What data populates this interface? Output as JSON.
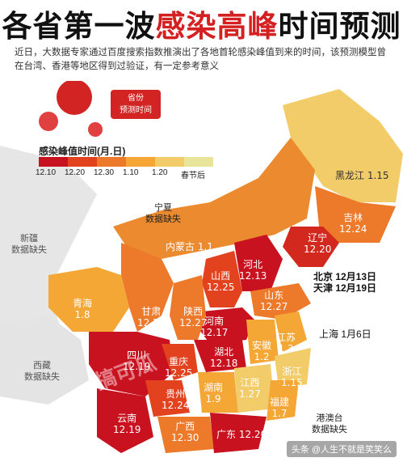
{
  "title": {
    "part1": "各省第一波",
    "part2": "感染高峰",
    "part3": "时间预测"
  },
  "intro": "近日，大数据专家通过百度搜索指数推演出了各地首轮感染峰值到来的时间，该预测模型曾在台湾、香港等地区得到过验证，有一定参考意义",
  "badge": {
    "line1": "省份",
    "line2": "预测时间"
  },
  "legend": {
    "title": "感染峰值时间(月.日)",
    "items": [
      {
        "label": "12.10",
        "color": "#c8121f"
      },
      {
        "label": "12.20",
        "color": "#e2421e"
      },
      {
        "label": "12.30",
        "color": "#ec7a2a"
      },
      {
        "label": "1.10",
        "color": "#f5a735"
      },
      {
        "label": "1.20",
        "color": "#f3cc6a"
      },
      {
        "label": "春节后",
        "color": "#e8e49a"
      }
    ]
  },
  "provinces": {
    "heilongjiang": {
      "name": "黑龙江",
      "date": "1.15"
    },
    "jilin": {
      "name": "吉林",
      "date": "12.24"
    },
    "liaoning": {
      "name": "辽宁",
      "date": "12.20"
    },
    "neimenggu": {
      "name": "内蒙古",
      "date": "1.1"
    },
    "hebei": {
      "name": "河北",
      "date": "12.13"
    },
    "shanxi": {
      "name": "山西",
      "date": "12.25"
    },
    "shandong": {
      "name": "山东",
      "date": "12.27"
    },
    "henan": {
      "name": "河南",
      "date": "12.17"
    },
    "shaanxi": {
      "name": "陕西",
      "date": "12.27"
    },
    "gansu": {
      "name": "甘肃",
      "date": "12.23"
    },
    "qinghai": {
      "name": "青海",
      "date": "1.8"
    },
    "sichuan": {
      "name": "四川",
      "date": "12.19"
    },
    "chongqing": {
      "name": "重庆",
      "date": "12.25"
    },
    "hubei": {
      "name": "湖北",
      "date": "12.18"
    },
    "anhui": {
      "name": "安徽",
      "date": "1.2"
    },
    "jiangsu": {
      "name": "江苏",
      "date": "1.3"
    },
    "zhejiang": {
      "name": "浙江",
      "date": "1.15"
    },
    "guizhou": {
      "name": "贵州",
      "date": "12.24"
    },
    "hunan": {
      "name": "湖南",
      "date": "1.9"
    },
    "jiangxi": {
      "name": "江西",
      "date": "1.27"
    },
    "fujian": {
      "name": "福建",
      "date": "1.7"
    },
    "yunnan": {
      "name": "云南",
      "date": "12.19"
    },
    "guangxi": {
      "name": "广西",
      "date": "12.30"
    },
    "guangdong": {
      "name": "广东",
      "date": "12.20"
    }
  },
  "missing": {
    "ningxia": {
      "name": "宁夏",
      "note": "数据缺失"
    },
    "xinjiang": {
      "name": "新疆",
      "note": "数据缺失"
    },
    "xizang": {
      "name": "西藏",
      "note": "数据缺失"
    },
    "gangaotai": {
      "name": "港澳台",
      "note": "数据缺失"
    }
  },
  "callouts": {
    "beijing": "北京  12月13日",
    "tianjin": "天津  12月19日",
    "shanghai": "上海  1月6日"
  },
  "watermark": "搞可瓜",
  "footer": "头条 @人生不就是笑笑么"
}
